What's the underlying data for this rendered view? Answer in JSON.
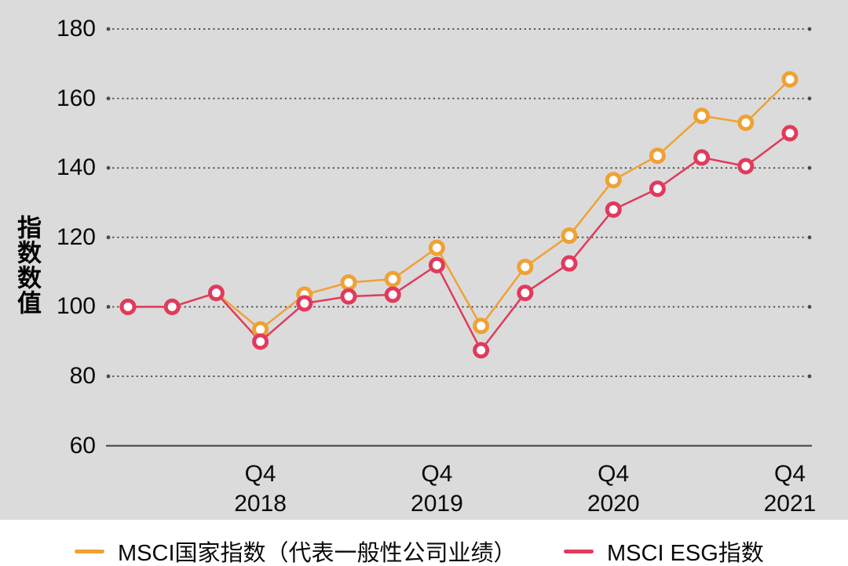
{
  "chart_data": {
    "type": "line",
    "title": "",
    "xlabel": "",
    "ylabel": "指数数值",
    "ylim": [
      60,
      180
    ],
    "y_ticks": [
      180,
      160,
      140,
      120,
      100,
      80,
      60
    ],
    "grid": "dotted-horizontal",
    "legend_position": "bottom",
    "x": [
      "2018Q1",
      "2018Q2",
      "2018Q3",
      "2018Q4",
      "2019Q1",
      "2019Q2",
      "2019Q3",
      "2019Q4",
      "2020Q1",
      "2020Q2",
      "2020Q3",
      "2020Q4",
      "2021Q1",
      "2021Q2",
      "2021Q3",
      "2021Q4"
    ],
    "x_ticks": [
      {
        "point_index": 3,
        "quarter": "Q4",
        "year": "2018"
      },
      {
        "point_index": 7,
        "quarter": "Q4",
        "year": "2019"
      },
      {
        "point_index": 11,
        "quarter": "Q4",
        "year": "2020"
      },
      {
        "point_index": 15,
        "quarter": "Q4",
        "year": "2021"
      }
    ],
    "series": [
      {
        "name": "MSCI国家指数（代表一般性公司业绩）",
        "color": "#F0A134",
        "values": [
          100,
          100,
          104,
          93.5,
          103.5,
          107,
          108,
          117,
          94.5,
          111.5,
          120.5,
          136.5,
          143.5,
          155,
          153,
          165.5
        ]
      },
      {
        "name": "MSCI ESG指数",
        "color": "#E13A5C",
        "values": [
          100,
          100,
          104,
          90,
          101,
          103,
          103.5,
          112,
          87.5,
          104,
          112.5,
          128,
          134,
          143,
          140.5,
          150
        ]
      }
    ]
  },
  "style": {
    "panel_bg": "#DBDBDB",
    "page_bg": "#FFFFFF",
    "axis_color": "#3F3F3F",
    "grid_dot_color": "#4A4A4A",
    "text_color": "#0A0A0A",
    "marker_fill": "#FFFFFF"
  }
}
